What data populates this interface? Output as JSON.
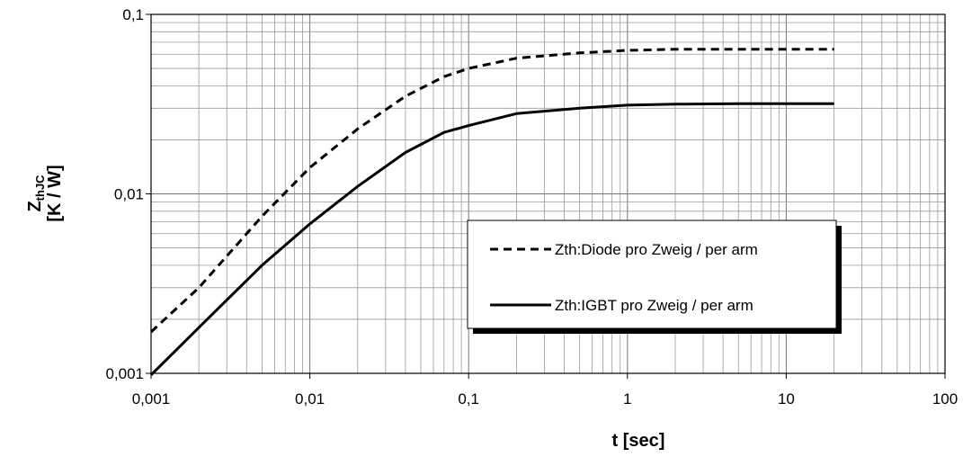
{
  "chart_data": {
    "type": "line",
    "x_scale": "log",
    "y_scale": "log",
    "xlim": [
      0.001,
      100
    ],
    "ylim": [
      0.001,
      0.1
    ],
    "x_ticks": [
      "0,001",
      "0,01",
      "0,1",
      "1",
      "10",
      "100"
    ],
    "y_ticks": [
      "0,001",
      "0,01",
      "0,1"
    ],
    "xlabel": "t [sec]",
    "ylabel_main": "Z",
    "ylabel_sub": "thJC",
    "ylabel_unit": "[K / W]",
    "grid": true,
    "legend_position": "center-right",
    "series": [
      {
        "name": "Zth:Diode  pro Zweig / per arm",
        "style": "dashed",
        "color": "#000000",
        "x": [
          0.001,
          0.002,
          0.005,
          0.01,
          0.02,
          0.04,
          0.07,
          0.1,
          0.2,
          0.5,
          1,
          2,
          5,
          10,
          20
        ],
        "y": [
          0.0017,
          0.003,
          0.0075,
          0.014,
          0.023,
          0.035,
          0.045,
          0.05,
          0.057,
          0.061,
          0.063,
          0.064,
          0.064,
          0.064,
          0.064
        ]
      },
      {
        "name": "Zth:IGBT  pro Zweig / per arm",
        "style": "solid",
        "color": "#000000",
        "x": [
          0.001,
          0.002,
          0.005,
          0.01,
          0.02,
          0.04,
          0.07,
          0.1,
          0.2,
          0.5,
          1,
          2,
          5,
          10,
          20
        ],
        "y": [
          0.00098,
          0.0018,
          0.004,
          0.0068,
          0.011,
          0.017,
          0.022,
          0.024,
          0.028,
          0.03,
          0.0312,
          0.0316,
          0.0318,
          0.0318,
          0.0318
        ]
      }
    ]
  }
}
